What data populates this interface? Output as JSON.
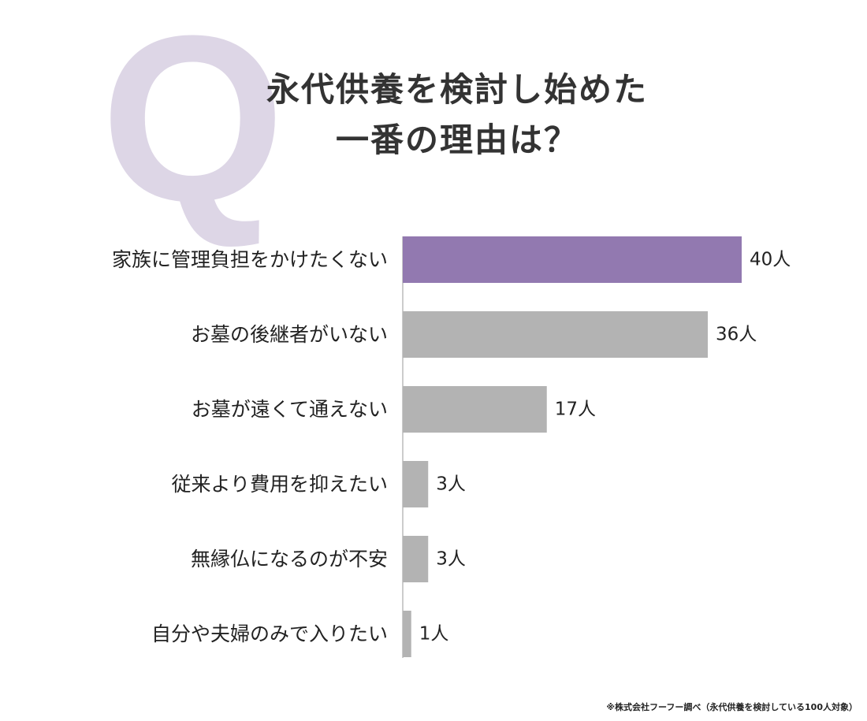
{
  "header": {
    "q_letter": "Q",
    "title_line1": "永代供養を検討し始めた",
    "title_line2": "一番の理由は？"
  },
  "colors": {
    "highlight": "#9279b0",
    "bar": "#b3b3b3",
    "q_letter": "#ddd6e6",
    "axis": "#999999"
  },
  "chart_data": {
    "type": "bar",
    "orientation": "horizontal",
    "categories": [
      "家族に管理負担をかけたくない",
      "お墓の後継者がいない",
      "お墓が遠くて通えない",
      "従来より費用を抑えたい",
      "無縁仏になるのが不安",
      "自分や夫婦のみで入りたい"
    ],
    "values": [
      40,
      36,
      17,
      3,
      3,
      1
    ],
    "value_labels": [
      "40人",
      "36人",
      "17人",
      "3人",
      "3人",
      "1人"
    ],
    "highlight_index": 0,
    "xlim": [
      0,
      40
    ],
    "grid": false
  },
  "footnote": "※株式会社フーフー調べ（永代供養を検討している100人対象）"
}
